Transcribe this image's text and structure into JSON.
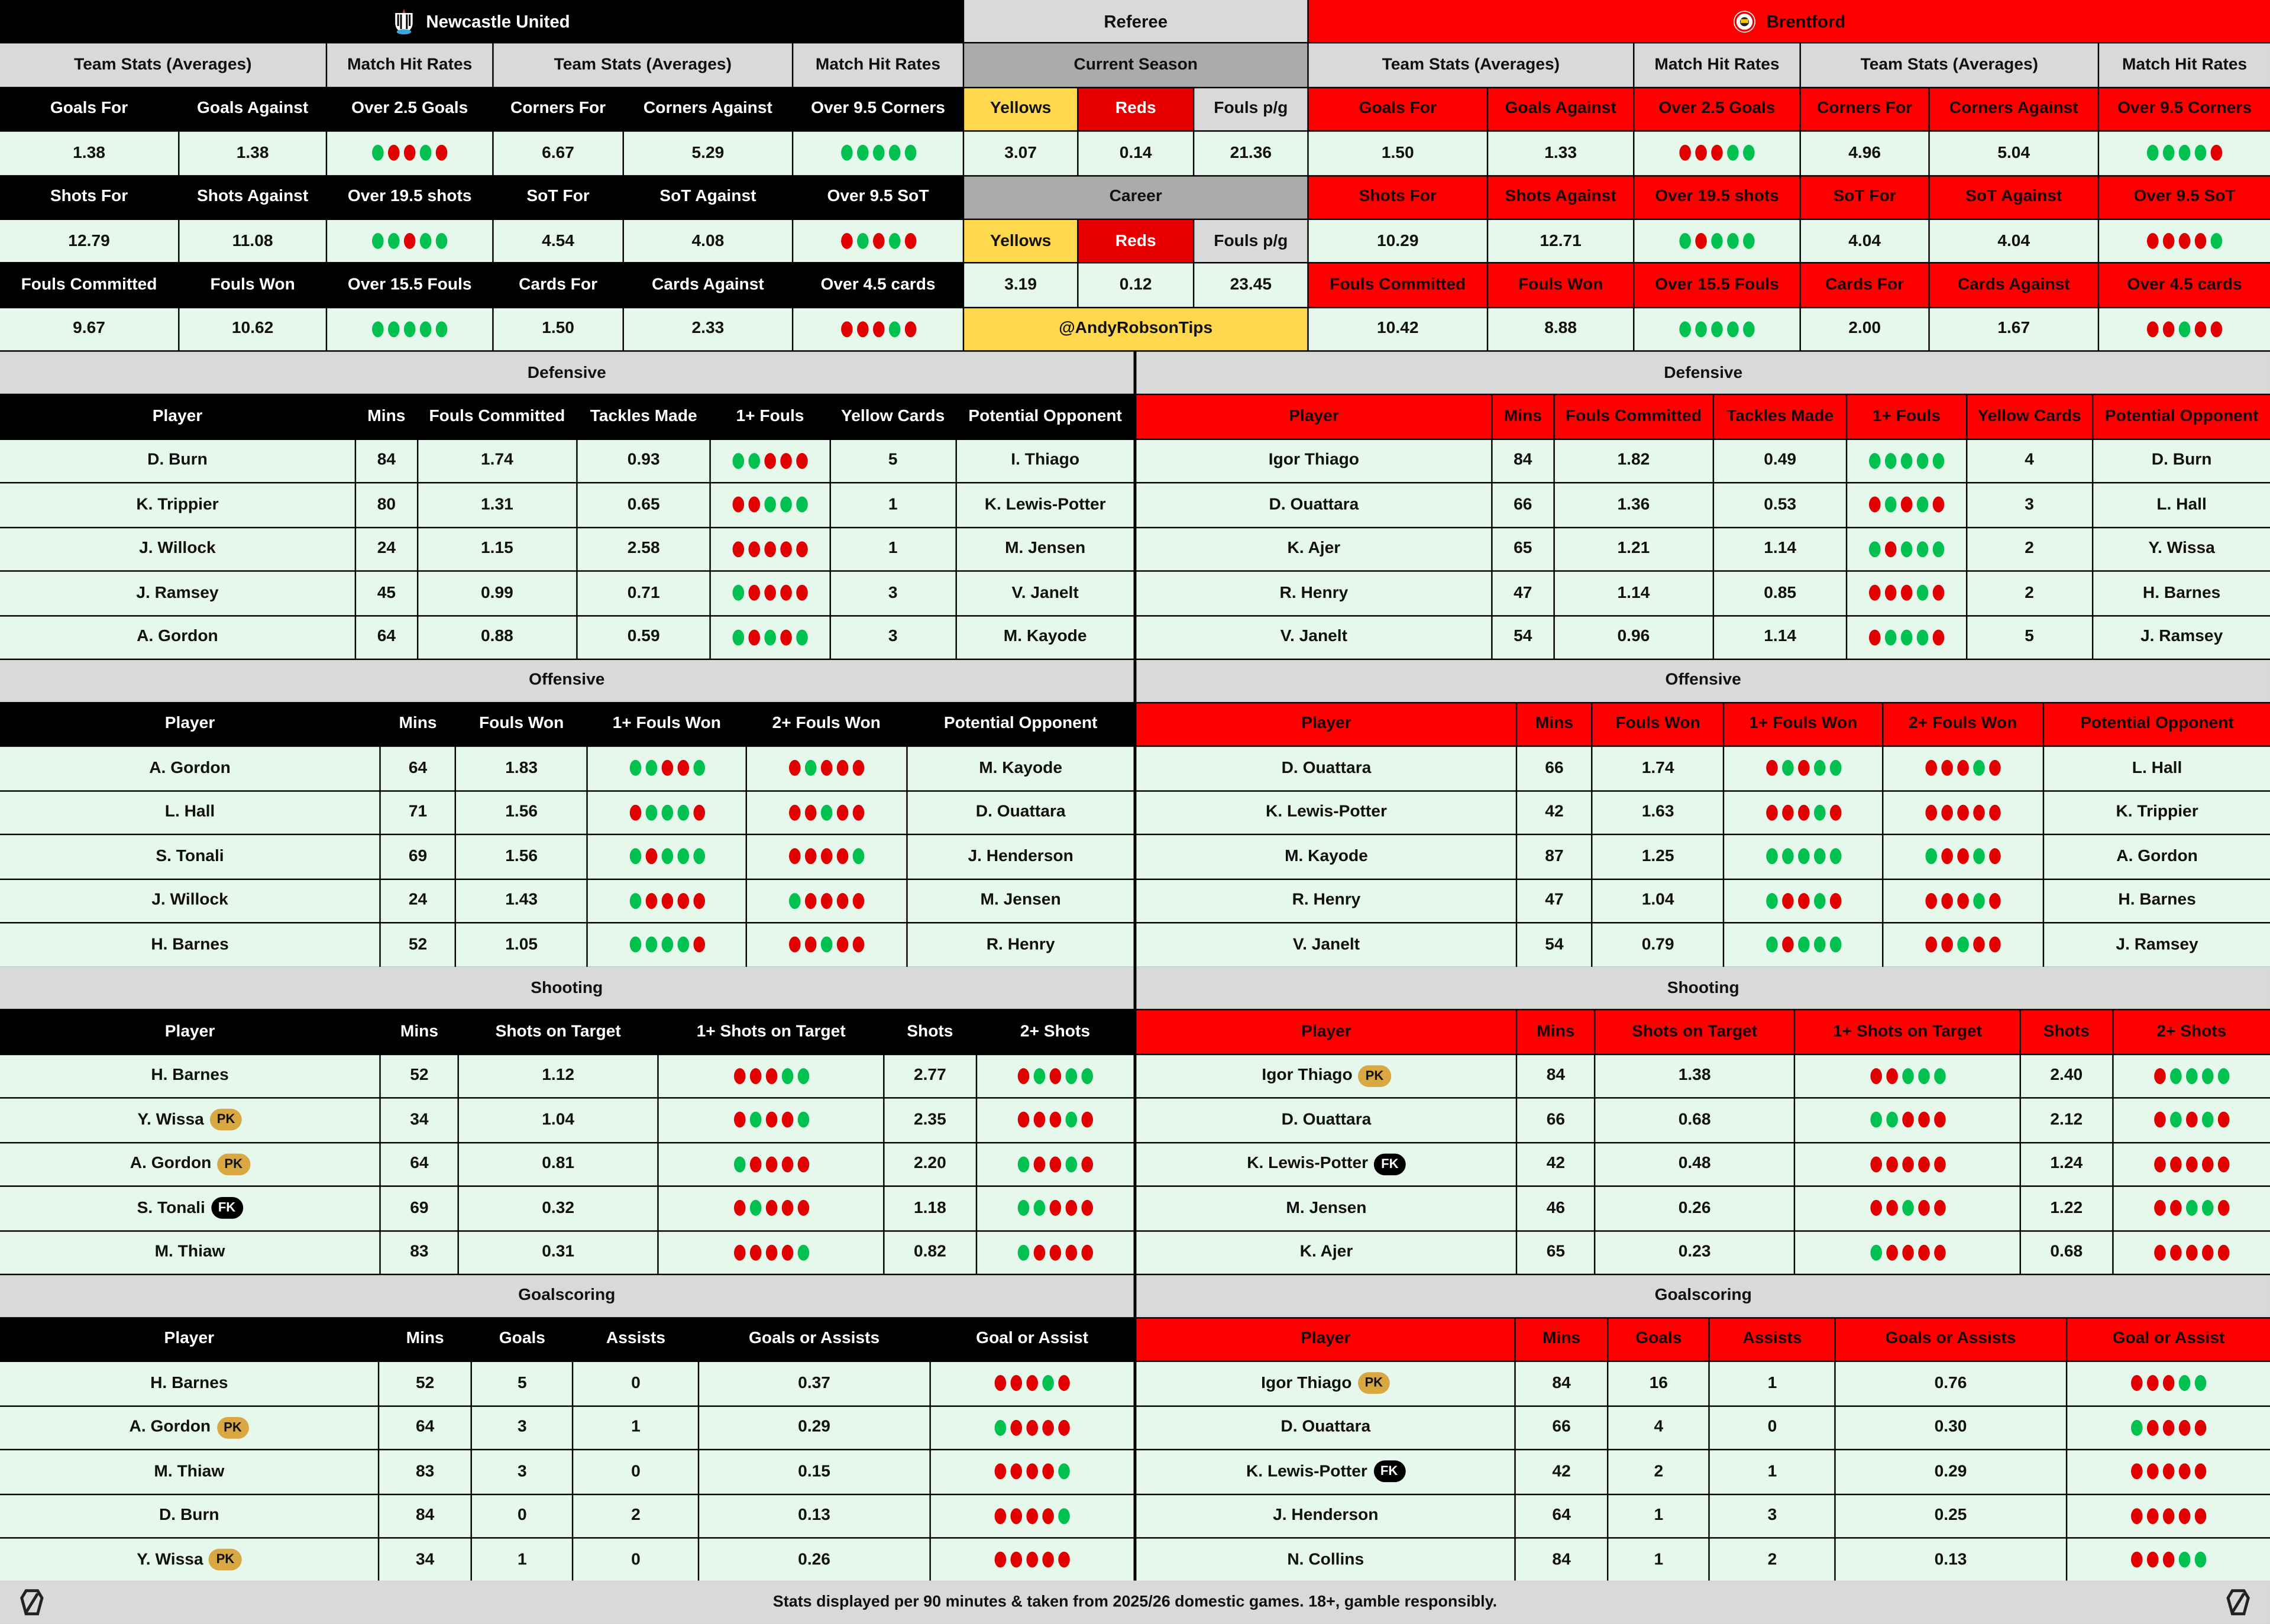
{
  "teams": [
    {
      "name": "Newcastle United",
      "logo": "newcastle-crest",
      "header_color": "#000000",
      "team_stats_label": "Team Stats (Averages)",
      "hit_rates_label": "Match Hit Rates",
      "stat_groups": [
        [
          {
            "label": "Goals For",
            "value": "1.38"
          },
          {
            "label": "Goals Against",
            "value": "1.38"
          },
          {
            "label": "Over 2.5 Goals",
            "dots": "GRRGR"
          },
          {
            "label": "Corners For",
            "value": "6.67"
          },
          {
            "label": "Corners Against",
            "value": "5.29"
          },
          {
            "label": "Over 9.5 Corners",
            "dots": "GGGGG"
          }
        ],
        [
          {
            "label": "Shots For",
            "value": "12.79"
          },
          {
            "label": "Shots Against",
            "value": "11.08"
          },
          {
            "label": "Over 19.5 shots",
            "dots": "GGRGG"
          },
          {
            "label": "SoT For",
            "value": "4.54"
          },
          {
            "label": "SoT Against",
            "value": "4.08"
          },
          {
            "label": "Over 9.5 SoT",
            "dots": "RGRGR"
          }
        ],
        [
          {
            "label": "Fouls Committed",
            "value": "9.67"
          },
          {
            "label": "Fouls Won",
            "value": "10.62"
          },
          {
            "label": "Over 15.5 Fouls",
            "dots": "GGGGG"
          },
          {
            "label": "Cards For",
            "value": "1.50"
          },
          {
            "label": "Cards Against",
            "value": "2.33"
          },
          {
            "label": "Over 4.5 cards",
            "dots": "RRRGR"
          }
        ]
      ]
    },
    {
      "name": "Brentford",
      "logo": "brentford-crest",
      "header_color": "#ff0000",
      "team_stats_label": "Team Stats (Averages)",
      "hit_rates_label": "Match Hit Rates",
      "stat_groups": [
        [
          {
            "label": "Goals For",
            "value": "1.50"
          },
          {
            "label": "Goals Against",
            "value": "1.33"
          },
          {
            "label": "Over 2.5 Goals",
            "dots": "RRRGG"
          },
          {
            "label": "Corners For",
            "value": "4.96"
          },
          {
            "label": "Corners Against",
            "value": "5.04"
          },
          {
            "label": "Over 9.5 Corners",
            "dots": "GGGGR"
          }
        ],
        [
          {
            "label": "Shots For",
            "value": "10.29"
          },
          {
            "label": "Shots Against",
            "value": "12.71"
          },
          {
            "label": "Over 19.5 shots",
            "dots": "GRGGG"
          },
          {
            "label": "SoT For",
            "value": "4.04"
          },
          {
            "label": "SoT Against",
            "value": "4.04"
          },
          {
            "label": "Over 9.5 SoT",
            "dots": "RRRRG"
          }
        ],
        [
          {
            "label": "Fouls Committed",
            "value": "10.42"
          },
          {
            "label": "Fouls Won",
            "value": "8.88"
          },
          {
            "label": "Over 15.5 Fouls",
            "dots": "GGGGG"
          },
          {
            "label": "Cards For",
            "value": "2.00"
          },
          {
            "label": "Cards Against",
            "value": "1.67"
          },
          {
            "label": "Over 4.5 cards",
            "dots": "RRGRR"
          }
        ]
      ]
    }
  ],
  "referee": {
    "title": "Referee",
    "current_season_label": "Current Season",
    "career_label": "Career",
    "labels": {
      "yellows": "Yellows",
      "reds": "Reds",
      "fouls": "Fouls p/g"
    },
    "current_season": {
      "yellows": "3.07",
      "reds": "0.14",
      "fouls": "21.36"
    },
    "career": {
      "yellows": "3.19",
      "reds": "0.12",
      "fouls": "23.45"
    },
    "handle": "@AndyRobsonTips"
  },
  "sections": [
    {
      "title": "Defensive",
      "columns": [
        "Player",
        "Mins",
        "Fouls Committed",
        "Tackles Made",
        "1+ Fouls",
        "Yellow Cards",
        "Potential Opponent"
      ],
      "home": [
        [
          {
            "name": "D. Burn"
          },
          "84",
          "1.74",
          "0.93",
          {
            "dots": "GGRRR"
          },
          "5",
          "I. Thiago"
        ],
        [
          {
            "name": "K. Trippier"
          },
          "80",
          "1.31",
          "0.65",
          {
            "dots": "RRGGG"
          },
          "1",
          "K. Lewis-Potter"
        ],
        [
          {
            "name": "J. Willock"
          },
          "24",
          "1.15",
          "2.58",
          {
            "dots": "RRRRR"
          },
          "1",
          "M. Jensen"
        ],
        [
          {
            "name": "J. Ramsey"
          },
          "45",
          "0.99",
          "0.71",
          {
            "dots": "GRRRR"
          },
          "3",
          "V. Janelt"
        ],
        [
          {
            "name": "A. Gordon"
          },
          "64",
          "0.88",
          "0.59",
          {
            "dots": "GRGRG"
          },
          "3",
          "M. Kayode"
        ]
      ],
      "away": [
        [
          {
            "name": "Igor Thiago"
          },
          "84",
          "1.82",
          "0.49",
          {
            "dots": "GGGGG"
          },
          "4",
          "D. Burn"
        ],
        [
          {
            "name": "D. Ouattara"
          },
          "66",
          "1.36",
          "0.53",
          {
            "dots": "RGRGR"
          },
          "3",
          "L. Hall"
        ],
        [
          {
            "name": "K. Ajer"
          },
          "65",
          "1.21",
          "1.14",
          {
            "dots": "GRGGG"
          },
          "2",
          "Y. Wissa"
        ],
        [
          {
            "name": "R. Henry"
          },
          "47",
          "1.14",
          "0.85",
          {
            "dots": "RRRGR"
          },
          "2",
          "H. Barnes"
        ],
        [
          {
            "name": "V. Janelt"
          },
          "54",
          "0.96",
          "1.14",
          {
            "dots": "RGGGR"
          },
          "5",
          "J. Ramsey"
        ]
      ]
    },
    {
      "title": "Offensive",
      "columns": [
        "Player",
        "Mins",
        "Fouls Won",
        "1+ Fouls Won",
        "2+ Fouls Won",
        "Potential Opponent"
      ],
      "home": [
        [
          {
            "name": "A. Gordon"
          },
          "64",
          "1.83",
          {
            "dots": "GGRRG"
          },
          {
            "dots": "RGRRR"
          },
          "M. Kayode"
        ],
        [
          {
            "name": "L. Hall"
          },
          "71",
          "1.56",
          {
            "dots": "RGGGR"
          },
          {
            "dots": "RRGRR"
          },
          "D. Ouattara"
        ],
        [
          {
            "name": "S. Tonali"
          },
          "69",
          "1.56",
          {
            "dots": "GRGGG"
          },
          {
            "dots": "RRRRG"
          },
          "J. Henderson"
        ],
        [
          {
            "name": "J. Willock"
          },
          "24",
          "1.43",
          {
            "dots": "GRRRR"
          },
          {
            "dots": "GRRRR"
          },
          "M. Jensen"
        ],
        [
          {
            "name": "H. Barnes"
          },
          "52",
          "1.05",
          {
            "dots": "GGGGR"
          },
          {
            "dots": "RRGRR"
          },
          "R. Henry"
        ]
      ],
      "away": [
        [
          {
            "name": "D. Ouattara"
          },
          "66",
          "1.74",
          {
            "dots": "RGRGG"
          },
          {
            "dots": "RRRGR"
          },
          "L. Hall"
        ],
        [
          {
            "name": "K. Lewis-Potter"
          },
          "42",
          "1.63",
          {
            "dots": "RRRGR"
          },
          {
            "dots": "RRRRR"
          },
          "K. Trippier"
        ],
        [
          {
            "name": "M. Kayode"
          },
          "87",
          "1.25",
          {
            "dots": "GGGGG"
          },
          {
            "dots": "GRRGR"
          },
          "A. Gordon"
        ],
        [
          {
            "name": "R. Henry"
          },
          "47",
          "1.04",
          {
            "dots": "GRRGR"
          },
          {
            "dots": "RRRGR"
          },
          "H. Barnes"
        ],
        [
          {
            "name": "V. Janelt"
          },
          "54",
          "0.79",
          {
            "dots": "GRGGG"
          },
          {
            "dots": "RRGRR"
          },
          "J. Ramsey"
        ]
      ]
    },
    {
      "title": "Shooting",
      "columns": [
        "Player",
        "Mins",
        "Shots on Target",
        "1+ Shots on Target",
        "Shots",
        "2+ Shots"
      ],
      "home": [
        [
          {
            "name": "H. Barnes"
          },
          "52",
          "1.12",
          {
            "dots": "RRRGG"
          },
          "2.77",
          {
            "dots": "RGRGG"
          }
        ],
        [
          {
            "name": "Y. Wissa",
            "badge": "PK"
          },
          "34",
          "1.04",
          {
            "dots": "RGRRG"
          },
          "2.35",
          {
            "dots": "RRRGR"
          }
        ],
        [
          {
            "name": "A. Gordon",
            "badge": "PK"
          },
          "64",
          "0.81",
          {
            "dots": "GRRRR"
          },
          "2.20",
          {
            "dots": "GRRGR"
          }
        ],
        [
          {
            "name": "S. Tonali",
            "badge": "FK"
          },
          "69",
          "0.32",
          {
            "dots": "RGRRR"
          },
          "1.18",
          {
            "dots": "GGRRR"
          }
        ],
        [
          {
            "name": "M. Thiaw"
          },
          "83",
          "0.31",
          {
            "dots": "RRRRG"
          },
          "0.82",
          {
            "dots": "GRRRR"
          }
        ]
      ],
      "away": [
        [
          {
            "name": "Igor Thiago",
            "badge": "PK"
          },
          "84",
          "1.38",
          {
            "dots": "RRGGG"
          },
          "2.40",
          {
            "dots": "RGGGG"
          }
        ],
        [
          {
            "name": "D. Ouattara"
          },
          "66",
          "0.68",
          {
            "dots": "GGRRR"
          },
          "2.12",
          {
            "dots": "RGRGR"
          }
        ],
        [
          {
            "name": "K. Lewis-Potter",
            "badge": "FK"
          },
          "42",
          "0.48",
          {
            "dots": "RRRRR"
          },
          "1.24",
          {
            "dots": "RRRRR"
          }
        ],
        [
          {
            "name": "M. Jensen"
          },
          "46",
          "0.26",
          {
            "dots": "RRGRR"
          },
          "1.22",
          {
            "dots": "RRGGR"
          }
        ],
        [
          {
            "name": "K. Ajer"
          },
          "65",
          "0.23",
          {
            "dots": "GRRRR"
          },
          "0.68",
          {
            "dots": "RRRRR"
          }
        ]
      ]
    },
    {
      "title": "Goalscoring",
      "columns": [
        "Player",
        "Mins",
        "Goals",
        "Assists",
        "Goals or Assists",
        "Goal or Assist"
      ],
      "home": [
        [
          {
            "name": "H. Barnes"
          },
          "52",
          "5",
          "0",
          "0.37",
          {
            "dots": "RRRGR"
          }
        ],
        [
          {
            "name": "A. Gordon",
            "badge": "PK"
          },
          "64",
          "3",
          "1",
          "0.29",
          {
            "dots": "GRRRR"
          }
        ],
        [
          {
            "name": "M. Thiaw"
          },
          "83",
          "3",
          "0",
          "0.15",
          {
            "dots": "RRRRG"
          }
        ],
        [
          {
            "name": "D. Burn"
          },
          "84",
          "0",
          "2",
          "0.13",
          {
            "dots": "RRRRG"
          }
        ],
        [
          {
            "name": "Y. Wissa",
            "badge": "PK"
          },
          "34",
          "1",
          "0",
          "0.26",
          {
            "dots": "RRRRR"
          }
        ]
      ],
      "away": [
        [
          {
            "name": "Igor Thiago",
            "badge": "PK"
          },
          "84",
          "16",
          "1",
          "0.76",
          {
            "dots": "RRRGG"
          }
        ],
        [
          {
            "name": "D. Ouattara"
          },
          "66",
          "4",
          "0",
          "0.30",
          {
            "dots": "GRRRR"
          }
        ],
        [
          {
            "name": "K. Lewis-Potter",
            "badge": "FK"
          },
          "42",
          "2",
          "1",
          "0.29",
          {
            "dots": "RRRRR"
          }
        ],
        [
          {
            "name": "J. Henderson"
          },
          "64",
          "1",
          "3",
          "0.25",
          {
            "dots": "RRRRR"
          }
        ],
        [
          {
            "name": "N. Collins"
          },
          "84",
          "1",
          "2",
          "0.13",
          {
            "dots": "RRRGG"
          }
        ]
      ]
    }
  ],
  "footer": {
    "text": "Stats displayed per 90 minutes & taken from 2025/26 domestic games. 18+, gamble responsibly.",
    "icon": "brand-logo-icon"
  },
  "colors": {
    "hit": "#00c050",
    "miss": "#e00000",
    "cell_bg": "#e6f8ec",
    "away_accent": "#ff0000",
    "home_accent": "#000000",
    "pk_badge": "#d9a843"
  }
}
